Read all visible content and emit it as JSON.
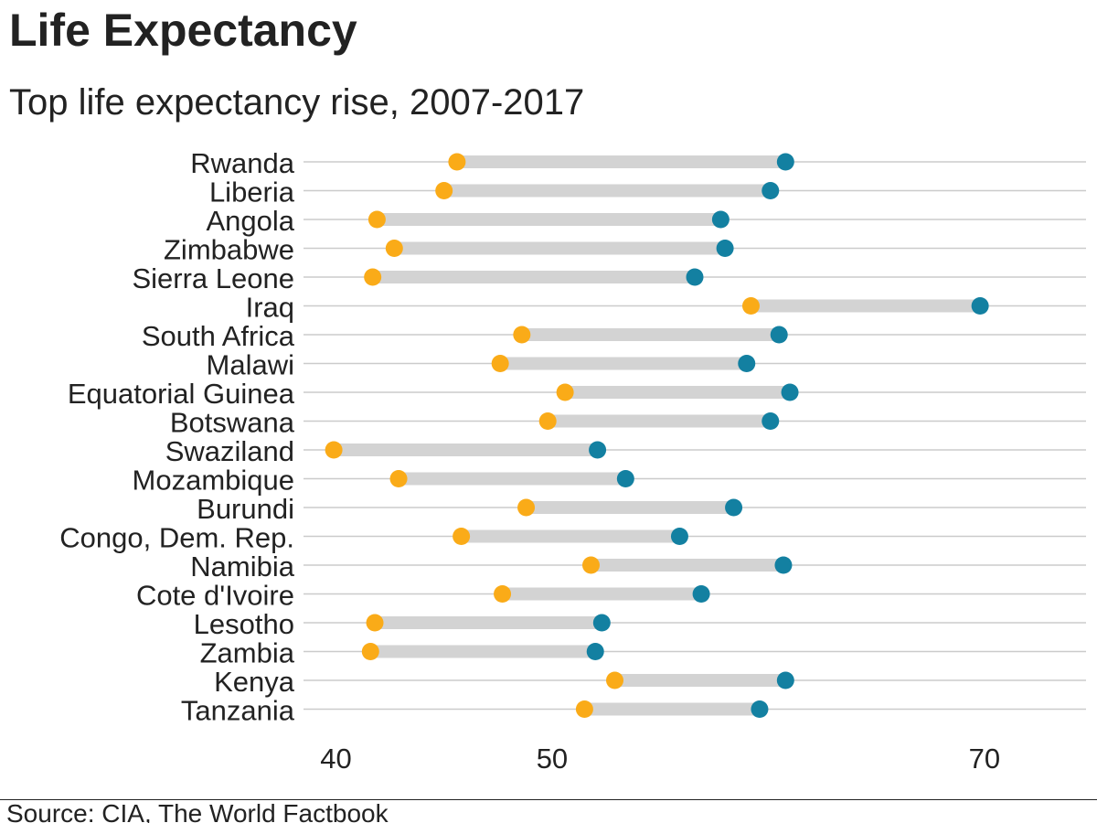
{
  "title": "Life Expectancy",
  "subtitle": "Top life expectancy rise, 2007-2017",
  "source": "Source: CIA, The World Factbook",
  "colors": {
    "start_2007": "#FAAB18",
    "end_2017": "#1380A1",
    "segment": "#D3D3D3",
    "gridline": "#CBCBCB",
    "text": "#222222"
  },
  "chart_data": {
    "type": "dumbbell",
    "xlim": [
      38.5,
      74.7
    ],
    "x_ticks": [
      "40",
      "50",
      "70"
    ],
    "x_tick_values": [
      40,
      50,
      70
    ],
    "grid": "horizontal",
    "legend": "none",
    "series": [
      {
        "year": "2007",
        "color": "#FAAB18"
      },
      {
        "year": "2017",
        "color": "#1380A1"
      }
    ],
    "categories": [
      "Rwanda",
      "Liberia",
      "Angola",
      "Zimbabwe",
      "Sierra Leone",
      "Iraq",
      "South Africa",
      "Malawi",
      "Equatorial Guinea",
      "Botswana",
      "Swaziland",
      "Mozambique",
      "Burundi",
      "Congo, Dem. Rep.",
      "Namibia",
      "Cote d'Ivoire",
      "Lesotho",
      "Zambia",
      "Kenya",
      "Tanzania"
    ],
    "values_2007": [
      45.6,
      45.0,
      41.9,
      42.7,
      41.7,
      59.2,
      48.6,
      47.6,
      50.6,
      49.8,
      39.9,
      42.9,
      48.8,
      45.8,
      51.8,
      47.7,
      41.8,
      41.6,
      52.9,
      51.5
    ],
    "values_2017": [
      60.8,
      60.1,
      57.8,
      58.0,
      56.6,
      69.8,
      60.5,
      59.0,
      61.0,
      60.1,
      52.1,
      53.4,
      58.4,
      55.9,
      60.7,
      56.9,
      52.3,
      52.0,
      60.8,
      59.6
    ]
  }
}
